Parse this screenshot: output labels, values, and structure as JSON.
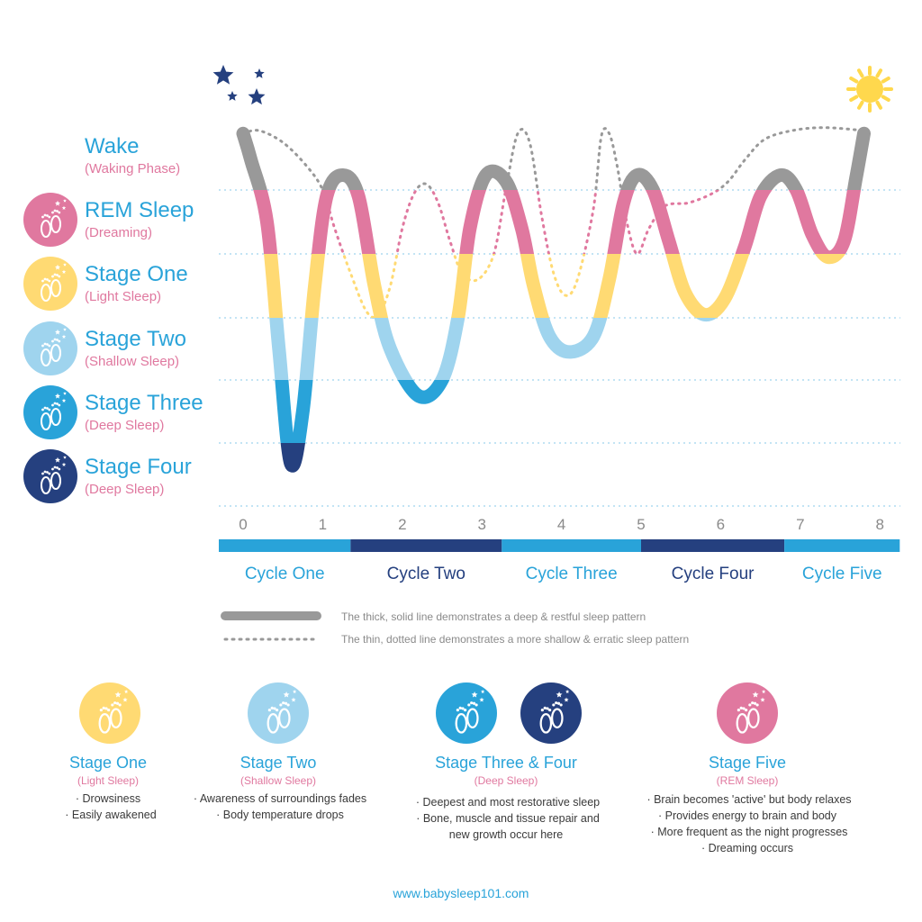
{
  "chart_data": {
    "type": "line",
    "x_ticks": [
      "0",
      "1",
      "2",
      "3",
      "4",
      "5",
      "6",
      "7",
      "8"
    ],
    "xlim": [
      0,
      8
    ],
    "y_categories": [
      "Wake",
      "REM Sleep",
      "Stage One",
      "Stage Two",
      "Stage Three",
      "Stage Four"
    ],
    "y_subtitles": [
      "(Waking Phase)",
      "(Dreaming)",
      "(Light Sleep)",
      "(Shallow Sleep)",
      "(Deep Sleep)",
      "(Deep Sleep)"
    ],
    "series": [
      {
        "name": "The thick, solid line demonstrates a deep & restful sleep pattern",
        "points": [
          [
            0,
            0.05
          ],
          [
            0.1,
            0.5
          ],
          [
            0.3,
            1.5
          ],
          [
            0.45,
            3.5
          ],
          [
            0.6,
            5.35
          ],
          [
            0.75,
            4.5
          ],
          [
            0.9,
            2.5
          ],
          [
            1.05,
            1.1
          ],
          [
            1.25,
            0.75
          ],
          [
            1.45,
            1.1
          ],
          [
            1.65,
            2.5
          ],
          [
            1.85,
            3.5
          ],
          [
            2.2,
            4.25
          ],
          [
            2.5,
            4.0
          ],
          [
            2.7,
            3.0
          ],
          [
            2.85,
            1.6
          ],
          [
            3.05,
            0.75
          ],
          [
            3.3,
            0.85
          ],
          [
            3.5,
            1.6
          ],
          [
            3.65,
            2.5
          ],
          [
            3.85,
            3.3
          ],
          [
            4.1,
            3.55
          ],
          [
            4.4,
            3.3
          ],
          [
            4.6,
            2.4
          ],
          [
            4.78,
            1.2
          ],
          [
            4.95,
            0.75
          ],
          [
            5.15,
            1.0
          ],
          [
            5.35,
            1.8
          ],
          [
            5.55,
            2.6
          ],
          [
            5.8,
            2.95
          ],
          [
            6.05,
            2.7
          ],
          [
            6.3,
            1.9
          ],
          [
            6.5,
            1.1
          ],
          [
            6.75,
            0.75
          ],
          [
            6.95,
            1.0
          ],
          [
            7.15,
            1.7
          ],
          [
            7.35,
            2.05
          ],
          [
            7.55,
            1.8
          ],
          [
            7.7,
            0.8
          ],
          [
            7.8,
            0.05
          ]
        ]
      },
      {
        "name": "The thin, dotted line demonstrates a more shallow & erratic sleep pattern",
        "points": [
          [
            0,
            0.05
          ],
          [
            0.2,
            0.0
          ],
          [
            0.5,
            0.2
          ],
          [
            0.8,
            0.6
          ],
          [
            1.0,
            1.0
          ],
          [
            1.15,
            1.6
          ],
          [
            1.35,
            2.3
          ],
          [
            1.55,
            2.9
          ],
          [
            1.7,
            2.95
          ],
          [
            1.85,
            2.5
          ],
          [
            2.0,
            1.6
          ],
          [
            2.15,
            1.05
          ],
          [
            2.3,
            0.9
          ],
          [
            2.45,
            1.2
          ],
          [
            2.6,
            1.8
          ],
          [
            2.75,
            2.3
          ],
          [
            2.95,
            2.4
          ],
          [
            3.15,
            2.0
          ],
          [
            3.3,
            1.0
          ],
          [
            3.45,
            0.05
          ],
          [
            3.6,
            0.2
          ],
          [
            3.75,
            1.4
          ],
          [
            3.9,
            2.3
          ],
          [
            4.05,
            2.65
          ],
          [
            4.2,
            2.4
          ],
          [
            4.4,
            1.3
          ],
          [
            4.5,
            0.1
          ],
          [
            4.6,
            0.05
          ],
          [
            4.7,
            0.6
          ],
          [
            4.82,
            1.5
          ],
          [
            4.95,
            2.0
          ],
          [
            5.1,
            1.6
          ],
          [
            5.3,
            1.25
          ],
          [
            5.6,
            1.2
          ],
          [
            5.9,
            1.05
          ],
          [
            6.1,
            0.85
          ],
          [
            6.3,
            0.5
          ],
          [
            6.55,
            0.15
          ],
          [
            6.9,
            0.0
          ],
          [
            7.3,
            -0.05
          ],
          [
            7.8,
            0.0
          ]
        ]
      }
    ],
    "cycles": [
      {
        "label": "Cycle One",
        "x0": 0,
        "x1": 1.35,
        "color": "#29a3d9",
        "text_color": "#29a3d9"
      },
      {
        "label": "Cycle Two",
        "x0": 1.35,
        "x1": 3.25,
        "color": "#25407f",
        "text_color": "#25407f"
      },
      {
        "label": "Cycle Three",
        "x0": 3.25,
        "x1": 5.0,
        "color": "#29a3d9",
        "text_color": "#29a3d9"
      },
      {
        "label": "Cycle Four",
        "x0": 5.0,
        "x1": 6.8,
        "color": "#25407f",
        "text_color": "#25407f"
      },
      {
        "label": "Cycle Five",
        "x0": 6.8,
        "x1": 8.25,
        "color": "#29a3d9",
        "text_color": "#29a3d9"
      }
    ],
    "colors": {
      "wake": "#999999",
      "rem": "#e0789f",
      "stage_one": "#ffda73",
      "stage_two": "#9fd4ee",
      "stage_three": "#29a3d9",
      "stage_four": "#25407f",
      "grid": "#9fd4ee",
      "star": "#25407f",
      "sun": "#ffd84d"
    }
  },
  "legend": {
    "solid": "The thick, solid line demonstrates a deep & restful sleep pattern",
    "dotted": "The thin, dotted line demonstrates a more shallow & erratic sleep pattern"
  },
  "cards": [
    {
      "title": "Stage One",
      "subtitle": "(Light Sleep)",
      "bullets": [
        "· Drowsiness",
        "· Easily awakened"
      ]
    },
    {
      "title": "Stage Two",
      "subtitle": "(Shallow Sleep)",
      "bullets": [
        "· Awareness of surroundings fades",
        "· Body temperature drops"
      ]
    },
    {
      "title": "Stage Three & Four",
      "subtitle": "(Deep Sleep)",
      "bullets": [
        "· Deepest and most restorative sleep",
        "· Bone, muscle and tissue repair and",
        "new growth occur here"
      ]
    },
    {
      "title": "Stage Five",
      "subtitle": "(REM Sleep)",
      "bullets": [
        "· Brain becomes 'active' but body relaxes",
        "· Provides energy to brain and body",
        "· More frequent as the night progresses",
        "· Dreaming occurs"
      ]
    }
  ],
  "website": "www.babysleep101.com"
}
